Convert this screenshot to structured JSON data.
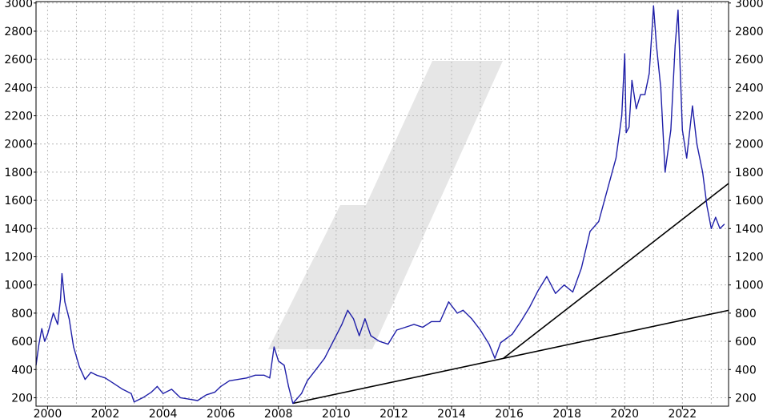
{
  "chart_data": {
    "type": "line",
    "title": "",
    "xlabel": "",
    "ylabel": "",
    "xlim": [
      1999.6,
      2023.6
    ],
    "ylim": [
      140,
      3010
    ],
    "x_ticks": [
      2000,
      2002,
      2004,
      2006,
      2008,
      2010,
      2012,
      2014,
      2016,
      2018,
      2020,
      2022
    ],
    "y_ticks": [
      200,
      400,
      600,
      800,
      1000,
      1200,
      1400,
      1600,
      1800,
      2000,
      2200,
      2400,
      2600,
      2800,
      3000
    ],
    "grid": true,
    "legend": "none",
    "colors": {
      "price_line": "#1f1fa8",
      "trend_line": "#000000",
      "grid": "#b9b9b9",
      "watermark": "#e6e6e6"
    },
    "series": [
      {
        "x": [
          1999.6,
          1999.7,
          1999.8,
          1999.9,
          2000.0,
          2000.2,
          2000.35,
          2000.45,
          2000.5,
          2000.6,
          2000.75,
          2000.9,
          2001.1,
          2001.3,
          2001.5,
          2001.7,
          2002.0,
          2002.3,
          2002.6,
          2002.9,
          2003.0,
          2003.3,
          2003.6,
          2003.8,
          2004.0,
          2004.3,
          2004.6,
          2004.9,
          2005.2,
          2005.5,
          2005.8,
          2006.0,
          2006.3,
          2006.6,
          2006.9,
          2007.2,
          2007.5,
          2007.7,
          2007.85,
          2008.0,
          2008.2,
          2008.35,
          2008.5,
          2008.8,
          2009.0,
          2009.3,
          2009.6,
          2009.9,
          2010.2,
          2010.4,
          2010.6,
          2010.8,
          2011.0,
          2011.2,
          2011.5,
          2011.8,
          2012.1,
          2012.4,
          2012.7,
          2013.0,
          2013.3,
          2013.6,
          2013.9,
          2014.2,
          2014.4,
          2014.7,
          2015.0,
          2015.3,
          2015.5,
          2015.7,
          2015.9,
          2016.1,
          2016.4,
          2016.7,
          2017.0,
          2017.3,
          2017.6,
          2017.9,
          2018.2,
          2018.5,
          2018.8,
          2019.1,
          2019.3,
          2019.5,
          2019.7,
          2019.9,
          2020.0,
          2020.05,
          2020.15,
          2020.25,
          2020.4,
          2020.55,
          2020.7,
          2020.85,
          2021.0,
          2021.1,
          2021.25,
          2021.4,
          2021.6,
          2021.75,
          2021.85,
          2022.0,
          2022.15,
          2022.35,
          2022.5,
          2022.7,
          2022.85,
          2023.0,
          2023.15,
          2023.3,
          2023.45
        ],
        "values": [
          430,
          580,
          690,
          600,
          650,
          800,
          720,
          900,
          1080,
          880,
          760,
          560,
          420,
          330,
          380,
          360,
          340,
          300,
          260,
          230,
          170,
          200,
          240,
          280,
          230,
          260,
          200,
          190,
          180,
          220,
          240,
          280,
          320,
          330,
          340,
          360,
          360,
          340,
          560,
          460,
          430,
          280,
          160,
          230,
          320,
          400,
          480,
          600,
          720,
          820,
          760,
          640,
          760,
          640,
          600,
          580,
          680,
          700,
          720,
          700,
          740,
          740,
          880,
          800,
          820,
          760,
          680,
          580,
          480,
          590,
          620,
          650,
          740,
          840,
          960,
          1060,
          940,
          1000,
          950,
          1120,
          1380,
          1450,
          1600,
          1750,
          1900,
          2200,
          2640,
          2080,
          2120,
          2450,
          2250,
          2350,
          2350,
          2500,
          2980,
          2700,
          2400,
          1800,
          2100,
          2700,
          2950,
          2100,
          1900,
          2270,
          2000,
          1800,
          1560,
          1400,
          1480,
          1400,
          1430
        ]
      }
    ],
    "trend_lines": [
      {
        "x": [
          2008.5,
          2023.6
        ],
        "values": [
          160,
          820
        ]
      },
      {
        "x": [
          2015.8,
          2023.6
        ],
        "values": [
          480,
          1720
        ]
      }
    ]
  }
}
